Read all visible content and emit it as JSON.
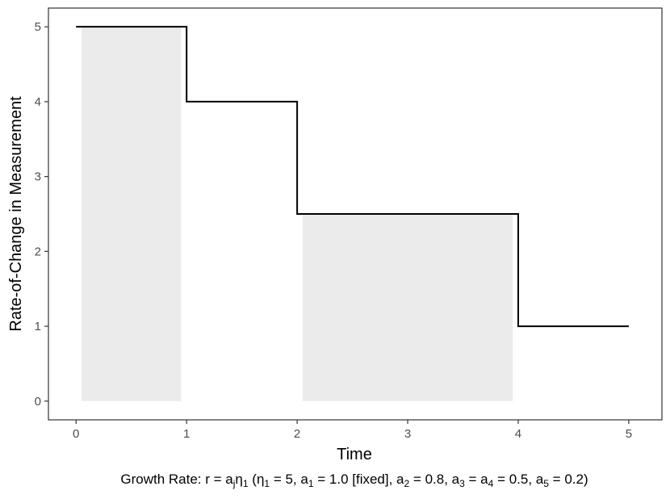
{
  "chart_data": {
    "type": "line",
    "line_style": "step",
    "xlabel": "Time",
    "ylabel": "Rate-of-Change in Measurement",
    "xlim": [
      -0.25,
      5.3
    ],
    "ylim": [
      -0.25,
      5.25
    ],
    "x_ticks": [
      "0",
      "1",
      "2",
      "3",
      "4",
      "5"
    ],
    "y_ticks": [
      "0",
      "1",
      "2",
      "3",
      "4",
      "5"
    ],
    "grid": false,
    "series": [
      {
        "x": [
          0,
          1,
          1,
          2,
          2,
          4,
          4,
          5
        ],
        "y": [
          5,
          5,
          4,
          4,
          2.5,
          2.5,
          1,
          1
        ],
        "color": "#000000"
      }
    ],
    "shaded_regions": [
      {
        "x": [
          0.05,
          0.95
        ],
        "y": [
          0,
          5
        ],
        "color": "#ebebeb"
      },
      {
        "x": [
          2.05,
          3.95
        ],
        "y": [
          0,
          2.5
        ],
        "color": "#ebebeb"
      }
    ],
    "caption": {
      "p1": "Growth Rate: r = a",
      "p2": "j",
      "p3": "η",
      "p4": "1",
      "p5": " (η",
      "p6": "1",
      "p7": " = 5, a",
      "p8": "1",
      "p9": " = 1.0 [fixed], a",
      "p10": "2",
      "p11": " = 0.8, a",
      "p12": "3",
      "p13": " = a",
      "p14": "4",
      "p15": " = 0.5, a",
      "p16": "5",
      "p17": " = 0.2)"
    }
  }
}
